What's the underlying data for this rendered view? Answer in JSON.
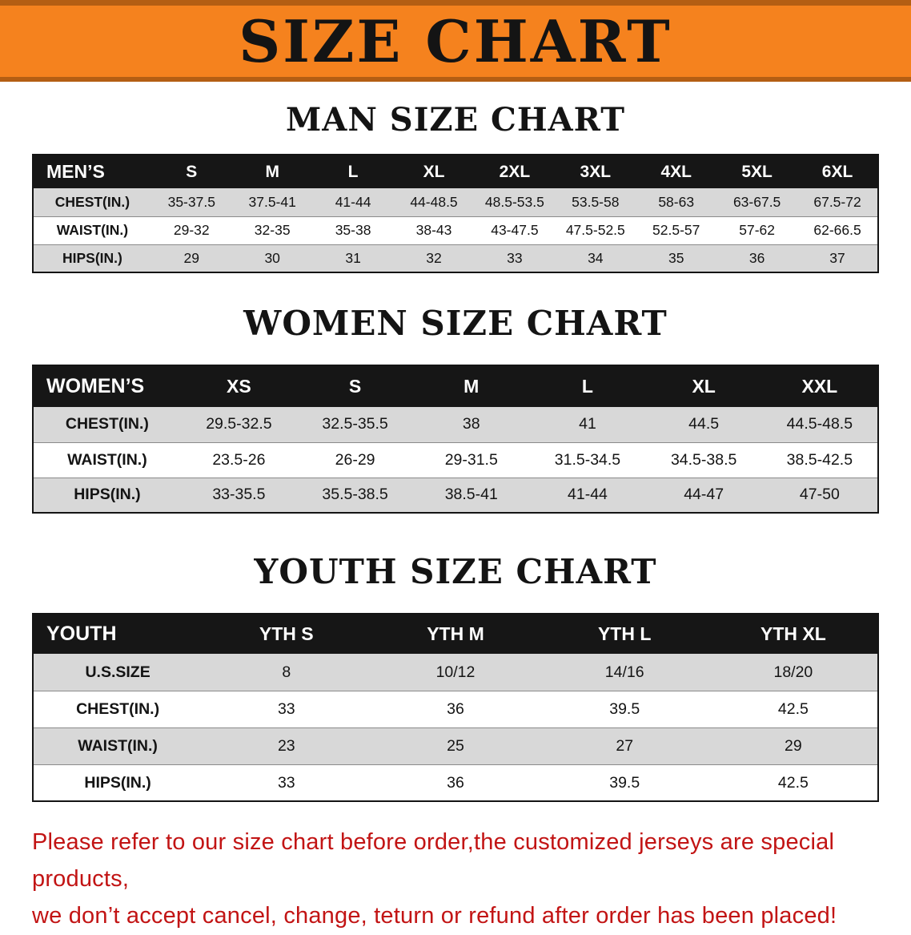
{
  "banner": {
    "title": "SIZE CHART",
    "background": "#f5821e",
    "accent": "#b45e13"
  },
  "men": {
    "heading": "MAN SIZE CHART",
    "table": {
      "header": [
        "MEN’S",
        "S",
        "M",
        "L",
        "XL",
        "2XL",
        "3XL",
        "4XL",
        "5XL",
        "6XL"
      ],
      "rows": [
        {
          "label": "CHEST(IN.)",
          "values": [
            "35-37.5",
            "37.5-41",
            "41-44",
            "44-48.5",
            "48.5-53.5",
            "53.5-58",
            "58-63",
            "63-67.5",
            "67.5-72"
          ]
        },
        {
          "label": "WAIST(IN.)",
          "values": [
            "29-32",
            "32-35",
            "35-38",
            "38-43",
            "43-47.5",
            "47.5-52.5",
            "52.5-57",
            "57-62",
            "62-66.5"
          ]
        },
        {
          "label": "HIPS(IN.)",
          "values": [
            "29",
            "30",
            "31",
            "32",
            "33",
            "34",
            "35",
            "36",
            "37"
          ]
        }
      ]
    }
  },
  "women": {
    "heading": "WOMEN SIZE CHART",
    "table": {
      "header": [
        "WOMEN’S",
        "XS",
        "S",
        "M",
        "L",
        "XL",
        "XXL"
      ],
      "rows": [
        {
          "label": "CHEST(IN.)",
          "values": [
            "29.5-32.5",
            "32.5-35.5",
            "38",
            "41",
            "44.5",
            "44.5-48.5"
          ]
        },
        {
          "label": "WAIST(IN.)",
          "values": [
            "23.5-26",
            "26-29",
            "29-31.5",
            "31.5-34.5",
            "34.5-38.5",
            "38.5-42.5"
          ]
        },
        {
          "label": "HIPS(IN.)",
          "values": [
            "33-35.5",
            "35.5-38.5",
            "38.5-41",
            "41-44",
            "44-47",
            "47-50"
          ]
        }
      ]
    }
  },
  "youth": {
    "heading": "YOUTH SIZE CHART",
    "table": {
      "header": [
        "YOUTH",
        "YTH S",
        "YTH M",
        "YTH L",
        "YTH XL"
      ],
      "rows": [
        {
          "label": "U.S.SIZE",
          "values": [
            "8",
            "10/12",
            "14/16",
            "18/20"
          ]
        },
        {
          "label": "CHEST(IN.)",
          "values": [
            "33",
            "36",
            "39.5",
            "42.5"
          ]
        },
        {
          "label": "WAIST(IN.)",
          "values": [
            "23",
            "25",
            "27",
            "29"
          ]
        },
        {
          "label": "HIPS(IN.)",
          "values": [
            "33",
            "36",
            "39.5",
            "42.5"
          ]
        }
      ]
    }
  },
  "disclaimer": {
    "color": "#c21414",
    "line1": "Please refer to our size chart before order,the customized jerseys are special products,",
    "line2": "we don’t accept cancel, change, teturn or refund after order has been placed!"
  }
}
